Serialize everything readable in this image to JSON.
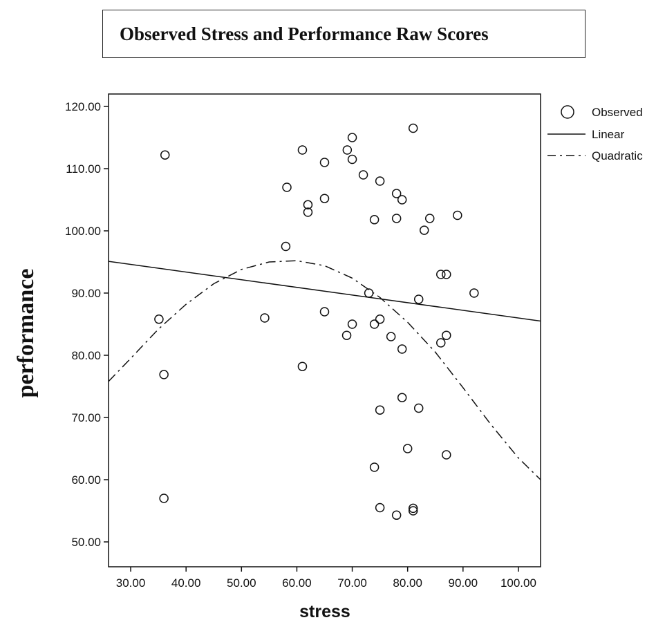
{
  "chart_data": {
    "type": "scatter",
    "title": "Observed Stress and Performance Raw Scores",
    "xlabel": "stress",
    "ylabel": "performance",
    "xlim": [
      26,
      104
    ],
    "ylim": [
      46,
      122
    ],
    "xticks": [
      30,
      40,
      50,
      60,
      70,
      80,
      90,
      100
    ],
    "xtick_labels": [
      "30.00",
      "40.00",
      "50.00",
      "60.00",
      "70.00",
      "80.00",
      "90.00",
      "100.00"
    ],
    "yticks": [
      50,
      60,
      70,
      80,
      90,
      100,
      110,
      120
    ],
    "ytick_labels": [
      "50.00",
      "60.00",
      "70.00",
      "80.00",
      "90.00",
      "100.00",
      "110.00",
      "120.00"
    ],
    "grid": false,
    "legend_position": "right",
    "legend": [
      "Observed",
      "Linear",
      "Quadratic"
    ],
    "observed": [
      {
        "x": 36.2,
        "y": 112.2
      },
      {
        "x": 35.1,
        "y": 85.8
      },
      {
        "x": 36.0,
        "y": 76.9
      },
      {
        "x": 36.0,
        "y": 57.0
      },
      {
        "x": 54.2,
        "y": 86.0
      },
      {
        "x": 58.2,
        "y": 107.0
      },
      {
        "x": 58.0,
        "y": 97.5
      },
      {
        "x": 61.0,
        "y": 113.0
      },
      {
        "x": 62.0,
        "y": 104.2
      },
      {
        "x": 62.0,
        "y": 103.0
      },
      {
        "x": 61.0,
        "y": 78.2
      },
      {
        "x": 65.0,
        "y": 111.0
      },
      {
        "x": 65.0,
        "y": 105.2
      },
      {
        "x": 65.0,
        "y": 87.0
      },
      {
        "x": 69.1,
        "y": 113.0
      },
      {
        "x": 70.0,
        "y": 115.0
      },
      {
        "x": 70.0,
        "y": 111.5
      },
      {
        "x": 69.0,
        "y": 83.2
      },
      {
        "x": 70.0,
        "y": 85.0
      },
      {
        "x": 72.0,
        "y": 109.0
      },
      {
        "x": 73.0,
        "y": 90.0
      },
      {
        "x": 74.0,
        "y": 101.8
      },
      {
        "x": 74.0,
        "y": 85.0
      },
      {
        "x": 75.0,
        "y": 108.0
      },
      {
        "x": 75.0,
        "y": 85.8
      },
      {
        "x": 75.0,
        "y": 71.2
      },
      {
        "x": 74.0,
        "y": 62.0
      },
      {
        "x": 75.0,
        "y": 55.5
      },
      {
        "x": 77.0,
        "y": 83.0
      },
      {
        "x": 78.0,
        "y": 106.0
      },
      {
        "x": 78.0,
        "y": 102.0
      },
      {
        "x": 79.0,
        "y": 105.0
      },
      {
        "x": 79.0,
        "y": 81.0
      },
      {
        "x": 79.0,
        "y": 73.2
      },
      {
        "x": 78.0,
        "y": 54.3
      },
      {
        "x": 80.0,
        "y": 65.0
      },
      {
        "x": 81.0,
        "y": 116.5
      },
      {
        "x": 81.0,
        "y": 55.4
      },
      {
        "x": 81.0,
        "y": 55.0
      },
      {
        "x": 82.0,
        "y": 89.0
      },
      {
        "x": 82.0,
        "y": 71.5
      },
      {
        "x": 83.0,
        "y": 100.1
      },
      {
        "x": 84.0,
        "y": 102.0
      },
      {
        "x": 86.0,
        "y": 93.0
      },
      {
        "x": 87.0,
        "y": 93.0
      },
      {
        "x": 86.0,
        "y": 82.0
      },
      {
        "x": 87.0,
        "y": 83.2
      },
      {
        "x": 87.0,
        "y": 64.0
      },
      {
        "x": 89.0,
        "y": 102.5
      },
      {
        "x": 92.0,
        "y": 90.0
      }
    ],
    "linear_fit": {
      "x": [
        26,
        104
      ],
      "y": [
        95.1,
        85.5
      ]
    },
    "quadratic_fit": {
      "x": [
        26,
        30,
        35,
        40,
        45,
        50,
        55,
        60,
        65,
        70,
        75,
        80,
        85,
        90,
        95,
        100,
        104
      ],
      "y": [
        75.8,
        79.5,
        84.2,
        88.2,
        91.5,
        93.8,
        95.0,
        95.2,
        94.4,
        92.4,
        89.3,
        85.3,
        80.5,
        74.8,
        68.9,
        63.5,
        60.0
      ]
    }
  }
}
